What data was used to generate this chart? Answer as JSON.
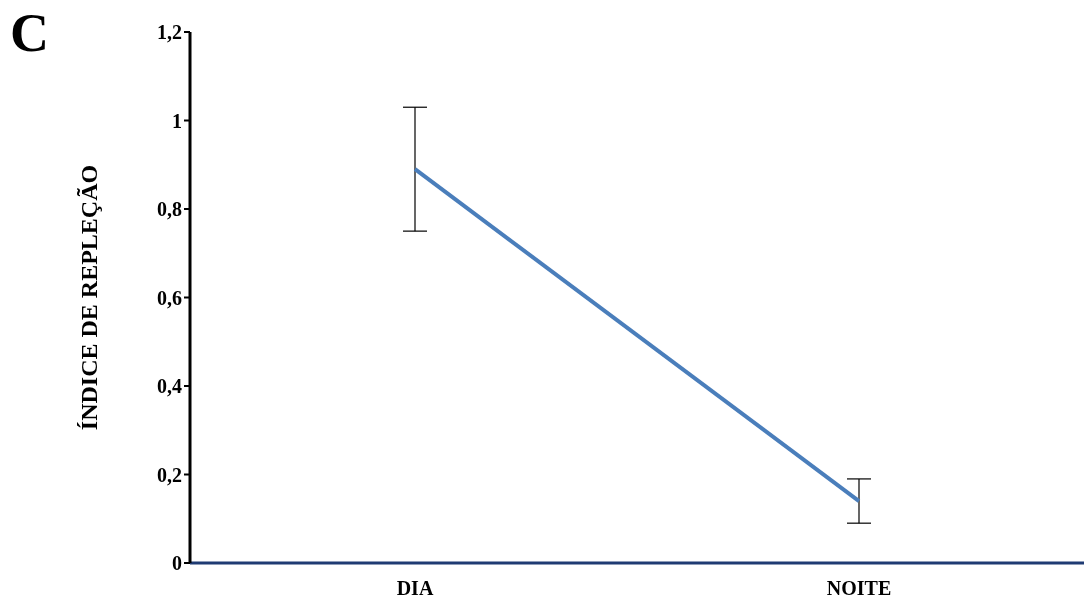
{
  "chart_data": {
    "type": "line",
    "ylabel": "ÍNDICE DE REPLEÇÃO",
    "annotations": [
      "C"
    ],
    "categories": [
      "DIA",
      "NOITE"
    ],
    "series": [
      {
        "color": "#4a7ebb",
        "values": [
          0.89,
          0.14
        ],
        "errors": [
          0.14,
          0.05
        ]
      }
    ],
    "ylim": [
      0,
      1.2
    ],
    "yticks": [
      0,
      {
        "value": 0.2,
        "label": "0,2"
      },
      {
        "value": 0.4,
        "label": "0,4"
      },
      {
        "value": 0.6,
        "label": "0,6"
      },
      {
        "value": 0.8,
        "label": "0,8"
      },
      1,
      {
        "value": 1.2,
        "label": "1,2"
      }
    ],
    "marker": "none",
    "line_style": "solid"
  }
}
